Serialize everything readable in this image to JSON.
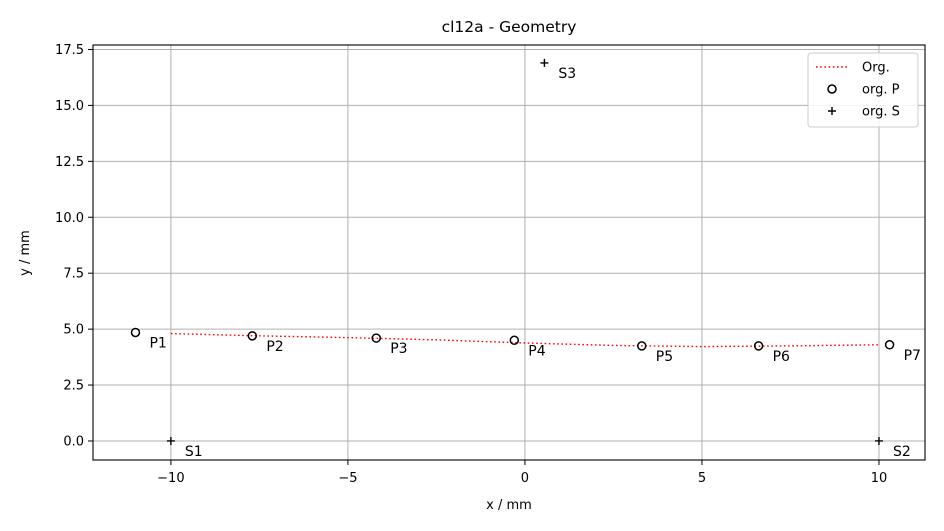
{
  "chart_data": {
    "type": "scatter",
    "title": "cl12a - Geometry",
    "xlabel": "x / mm",
    "ylabel": "y / mm",
    "xlim": [
      -12.2,
      11.3
    ],
    "ylim": [
      -0.85,
      17.7
    ],
    "xticks": [
      -10,
      -5,
      0,
      5,
      10
    ],
    "xtick_labels": [
      "−10",
      "−5",
      "0",
      "5",
      "10"
    ],
    "yticks": [
      0.0,
      2.5,
      5.0,
      7.5,
      10.0,
      12.5,
      15.0,
      17.5
    ],
    "ytick_labels": [
      "0.0",
      "2.5",
      "5.0",
      "7.5",
      "10.0",
      "12.5",
      "15.0",
      "17.5"
    ],
    "grid": true,
    "legend_position": "top-right",
    "series": [
      {
        "name": "Org.",
        "style": "dotted-line",
        "color": "#ff0000",
        "x": [
          -10.0,
          -7.5,
          -5.0,
          -2.5,
          0.0,
          2.5,
          5.0,
          7.5,
          10.0
        ],
        "y": [
          4.8,
          4.7,
          4.62,
          4.52,
          4.38,
          4.27,
          4.22,
          4.25,
          4.3
        ]
      },
      {
        "name": "org. P",
        "style": "open-circle",
        "color": "#000000",
        "labels": [
          "P1",
          "P2",
          "P3",
          "P4",
          "P5",
          "P6",
          "P7"
        ],
        "x": [
          -11.0,
          -7.7,
          -4.2,
          -0.3,
          3.3,
          6.6,
          10.3
        ],
        "y": [
          4.85,
          4.7,
          4.6,
          4.5,
          4.25,
          4.25,
          4.3
        ]
      },
      {
        "name": "org. S",
        "style": "plus",
        "color": "#000000",
        "labels": [
          "S1",
          "S2",
          "S3"
        ],
        "x": [
          -10.0,
          10.0,
          0.55
        ],
        "y": [
          0.0,
          0.0,
          16.9
        ]
      }
    ]
  }
}
